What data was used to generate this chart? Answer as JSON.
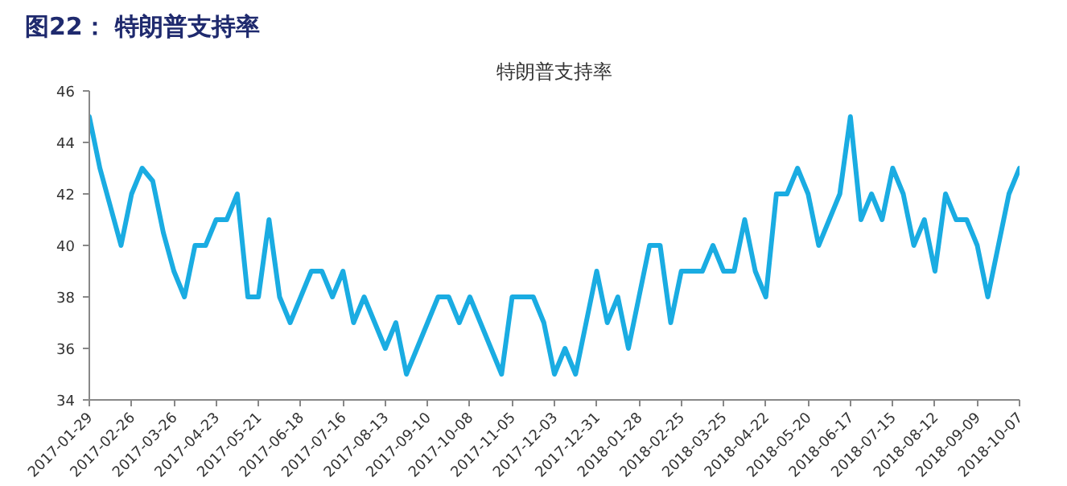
{
  "chart_data": {
    "type": "line",
    "title": "图22：  特朗普支持率",
    "subtitle": "特朗普支持率",
    "x": [
      "2017-01-29",
      "2017-02-05",
      "2017-02-12",
      "2017-02-19",
      "2017-02-26",
      "2017-03-05",
      "2017-03-12",
      "2017-03-19",
      "2017-03-26",
      "2017-04-02",
      "2017-04-09",
      "2017-04-16",
      "2017-04-23",
      "2017-04-30",
      "2017-05-07",
      "2017-05-14",
      "2017-05-21",
      "2017-05-28",
      "2017-06-04",
      "2017-06-11",
      "2017-06-18",
      "2017-06-25",
      "2017-07-02",
      "2017-07-09",
      "2017-07-16",
      "2017-07-23",
      "2017-07-30",
      "2017-08-06",
      "2017-08-13",
      "2017-08-20",
      "2017-08-27",
      "2017-09-03",
      "2017-09-10",
      "2017-09-17",
      "2017-09-24",
      "2017-10-01",
      "2017-10-08",
      "2017-10-15",
      "2017-10-22",
      "2017-10-29",
      "2017-11-05",
      "2017-11-12",
      "2017-11-19",
      "2017-11-26",
      "2017-12-03",
      "2017-12-10",
      "2017-12-17",
      "2017-12-24",
      "2017-12-31",
      "2018-01-07",
      "2018-01-14",
      "2018-01-21",
      "2018-01-28",
      "2018-02-04",
      "2018-02-11",
      "2018-02-18",
      "2018-02-25",
      "2018-03-04",
      "2018-03-11",
      "2018-03-18",
      "2018-03-25",
      "2018-04-01",
      "2018-04-08",
      "2018-04-15",
      "2018-04-22",
      "2018-04-29",
      "2018-05-06",
      "2018-05-13",
      "2018-05-20",
      "2018-05-27",
      "2018-06-03",
      "2018-06-10",
      "2018-06-17",
      "2018-06-24",
      "2018-07-01",
      "2018-07-08",
      "2018-07-15",
      "2018-07-22",
      "2018-07-29",
      "2018-08-05",
      "2018-08-12",
      "2018-08-19",
      "2018-08-26",
      "2018-09-02",
      "2018-09-09",
      "2018-09-16",
      "2018-09-23",
      "2018-09-30",
      "2018-10-07"
    ],
    "series": [
      {
        "color": "#1aace2",
        "values": [
          45,
          43,
          41.5,
          40,
          42,
          43,
          42.5,
          40.5,
          39,
          38,
          40,
          40,
          41,
          41,
          42,
          38,
          38,
          41,
          38,
          37,
          38,
          39,
          39,
          38,
          39,
          37,
          38,
          37,
          36,
          37,
          35,
          36,
          37,
          38,
          38,
          37,
          38,
          37,
          36,
          35,
          38,
          38,
          38,
          37,
          35,
          36,
          35,
          37,
          39,
          37,
          38,
          36,
          38,
          40,
          40,
          37,
          39,
          39,
          39,
          40,
          39,
          39,
          41,
          39,
          38,
          42,
          42,
          43,
          42,
          40,
          41,
          42,
          45,
          41,
          42,
          41,
          43,
          42,
          40,
          41,
          39,
          42,
          41,
          41,
          40,
          38,
          40,
          42,
          43
        ]
      }
    ],
    "xlim": [
      "2017-01-29",
      "2018-10-07"
    ],
    "xticks": [
      "2017-01-29",
      "2017-02-26",
      "2017-03-26",
      "2017-04-23",
      "2017-05-21",
      "2017-06-18",
      "2017-07-16",
      "2017-08-13",
      "2017-09-10",
      "2017-10-08",
      "2017-11-05",
      "2017-12-03",
      "2017-12-31",
      "2018-01-28",
      "2018-02-25",
      "2018-03-25",
      "2018-04-22",
      "2018-05-20",
      "2018-06-17",
      "2018-07-15",
      "2018-08-12",
      "2018-09-09",
      "2018-10-07"
    ],
    "ylim": [
      34,
      46
    ],
    "yticks": [
      34,
      36,
      38,
      40,
      42,
      44,
      46
    ],
    "grid": false,
    "line_style": "solid"
  }
}
